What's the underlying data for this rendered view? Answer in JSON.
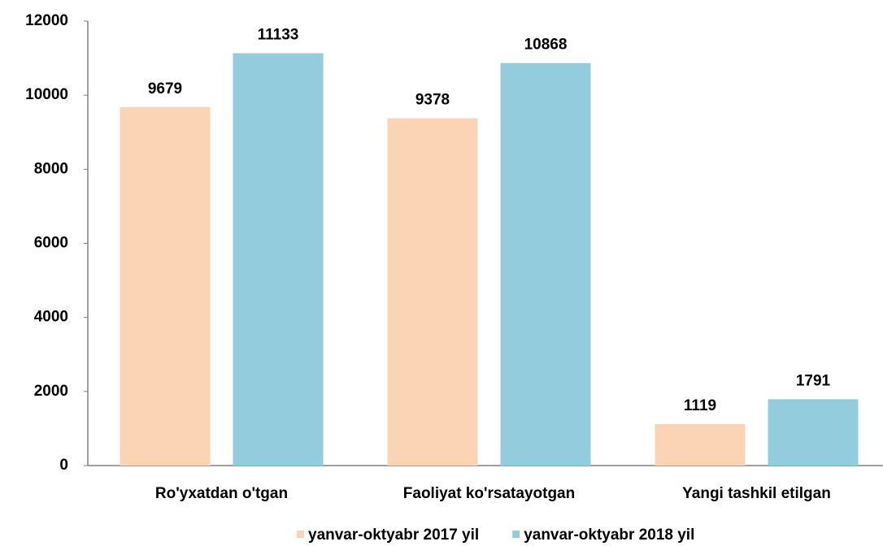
{
  "chart_data": {
    "type": "bar",
    "categories": [
      "Ro'yxatdan o'tgan",
      "Faoliyat ko'rsatayotgan",
      "Yangi tashkil etilgan"
    ],
    "series": [
      {
        "name": "yanvar-oktyabr 2017 yil",
        "color": "#fbd3b5",
        "values": [
          9679,
          9378,
          1119
        ]
      },
      {
        "name": "yanvar-oktyabr 2018 yil",
        "color": "#93cddd",
        "values": [
          11133,
          10868,
          1791
        ]
      }
    ],
    "ylim": [
      0,
      12000
    ],
    "yticks": [
      0,
      2000,
      4000,
      6000,
      8000,
      10000,
      12000
    ],
    "legend": "bottom"
  }
}
